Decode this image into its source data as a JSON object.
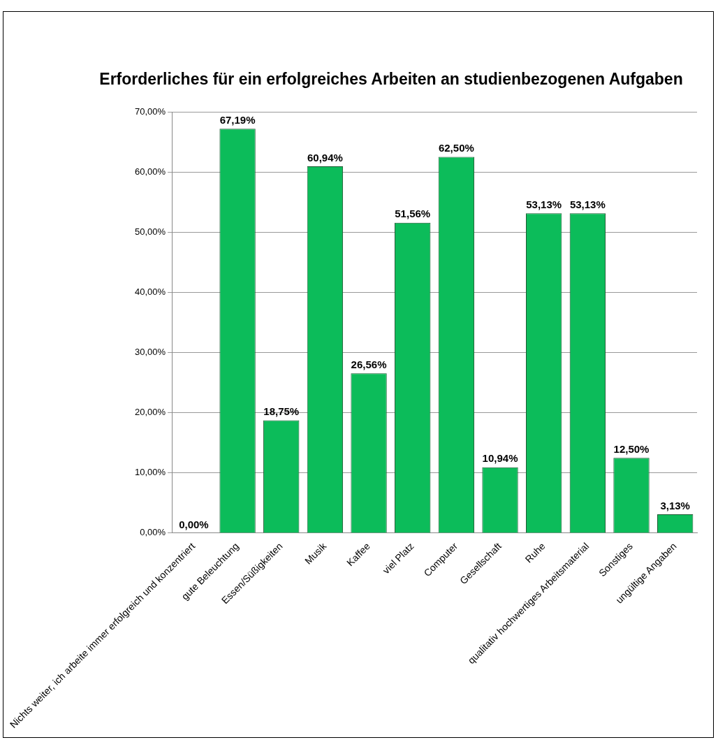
{
  "chart_data": {
    "type": "bar",
    "title": "Erforderliches für ein erfolgreiches Arbeiten an studienbezogenen Aufgaben",
    "categories": [
      "Nichts weiter, ich arbeite immer erfolgreich und konzentriert",
      "gute Beleuchtung",
      "Essen/Süßigkeiten",
      "Musik",
      "Kaffee",
      "viel Platz",
      "Computer",
      "Gesellschaft",
      "Ruhe",
      "qualitativ hochwertiges Arbeitsmaterial",
      "Sonstiges",
      "ungültige Angaben"
    ],
    "values": [
      0,
      67.19,
      18.75,
      60.94,
      26.56,
      51.56,
      62.5,
      10.94,
      53.13,
      53.13,
      12.5,
      3.13
    ],
    "value_labels": [
      "0,00%",
      "67,19%",
      "18,75%",
      "60,94%",
      "26,56%",
      "51,56%",
      "62,50%",
      "10,94%",
      "53,13%",
      "53,13%",
      "12,50%",
      "3,13%"
    ],
    "color": "#0cbc5a",
    "ylim": [
      0,
      70
    ],
    "yticks": [
      {
        "value": 0,
        "label": "0,00%"
      },
      {
        "value": 10,
        "label": "10,00%"
      },
      {
        "value": 20,
        "label": "20,00%"
      },
      {
        "value": 30,
        "label": "30,00%"
      },
      {
        "value": 40,
        "label": "40,00%"
      },
      {
        "value": 50,
        "label": "50,00%"
      },
      {
        "value": 60,
        "label": "60,00%"
      },
      {
        "value": 70,
        "label": "70,00%"
      }
    ],
    "grid": "y"
  }
}
